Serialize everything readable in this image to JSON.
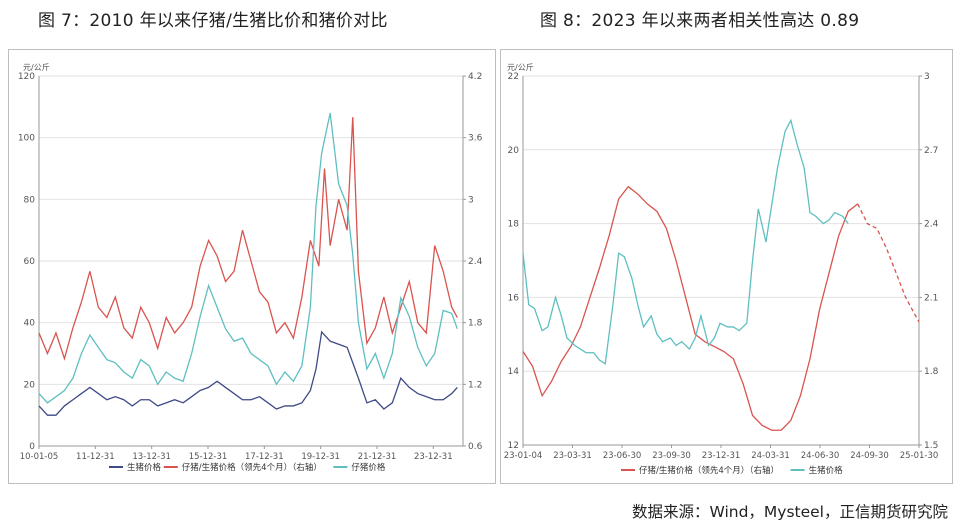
{
  "titles": {
    "left": "图 7：2010 年以来仔猪/生猪比价和猪价对比",
    "right": "图 8：2023 年以来两者相关性高达 0.89"
  },
  "source": "数据来源：Wind，Mysteel，正信期货研究院",
  "chart_data": [
    {
      "type": "line",
      "unit_label": "元/公斤",
      "x_ticks": [
        "10-01-05",
        "11-12-31",
        "13-12-31",
        "15-12-31",
        "17-12-31",
        "19-12-31",
        "21-12-31",
        "23-12-31"
      ],
      "x_range": [
        "2010-01-05",
        "2024-12-31"
      ],
      "y_left": {
        "min": 0,
        "max": 120,
        "ticks": [
          0,
          20,
          40,
          60,
          80,
          100,
          120
        ]
      },
      "y_right": {
        "min": 0.6,
        "max": 4.2,
        "ticks": [
          "0.6",
          "1.2",
          "1.8",
          "2.4",
          "3",
          "3.6",
          "4.2"
        ]
      },
      "series": [
        {
          "name": "生猪价格",
          "axis": "left",
          "color": "#3f4a86",
          "x": [
            2010.0,
            2010.3,
            2010.6,
            2010.9,
            2011.2,
            2011.5,
            2011.8,
            2012.1,
            2012.4,
            2012.7,
            2013.0,
            2013.3,
            2013.6,
            2013.9,
            2014.2,
            2014.5,
            2014.8,
            2015.1,
            2015.4,
            2015.7,
            2016.0,
            2016.3,
            2016.6,
            2016.9,
            2017.2,
            2017.5,
            2017.8,
            2018.1,
            2018.4,
            2018.7,
            2019.0,
            2019.3,
            2019.6,
            2019.8,
            2020.0,
            2020.3,
            2020.6,
            2020.9,
            2021.1,
            2021.3,
            2021.6,
            2021.9,
            2022.2,
            2022.5,
            2022.8,
            2023.1,
            2023.4,
            2023.7,
            2024.0,
            2024.3,
            2024.6,
            2024.8
          ],
          "y": [
            13,
            10,
            10,
            13,
            15,
            17,
            19,
            17,
            15,
            16,
            15,
            13,
            15,
            15,
            13,
            14,
            15,
            14,
            16,
            18,
            19,
            21,
            19,
            17,
            15,
            15,
            16,
            14,
            12,
            13,
            13,
            14,
            18,
            25,
            37,
            34,
            33,
            32,
            27,
            22,
            14,
            15,
            12,
            14,
            22,
            19,
            17,
            16,
            15,
            15,
            17,
            19
          ]
        },
        {
          "name": "仔猪/生猪价格（领先4个月）（右轴）",
          "axis": "right",
          "color": "#d9544f",
          "x": [
            2010.0,
            2010.3,
            2010.6,
            2010.9,
            2011.2,
            2011.5,
            2011.8,
            2012.1,
            2012.4,
            2012.7,
            2013.0,
            2013.3,
            2013.6,
            2013.9,
            2014.2,
            2014.5,
            2014.8,
            2015.1,
            2015.4,
            2015.7,
            2016.0,
            2016.3,
            2016.6,
            2016.9,
            2017.2,
            2017.5,
            2017.8,
            2018.1,
            2018.4,
            2018.7,
            2019.0,
            2019.3,
            2019.6,
            2019.9,
            2020.1,
            2020.3,
            2020.6,
            2020.9,
            2021.1,
            2021.3,
            2021.6,
            2021.9,
            2022.2,
            2022.5,
            2022.8,
            2023.1,
            2023.4,
            2023.7,
            2024.0,
            2024.3,
            2024.6,
            2024.8
          ],
          "y": [
            1.7,
            1.5,
            1.7,
            1.45,
            1.75,
            2.0,
            2.3,
            1.95,
            1.85,
            2.05,
            1.75,
            1.65,
            1.95,
            1.8,
            1.55,
            1.85,
            1.7,
            1.8,
            1.95,
            2.35,
            2.6,
            2.45,
            2.2,
            2.3,
            2.7,
            2.4,
            2.1,
            2.0,
            1.7,
            1.8,
            1.65,
            2.05,
            2.6,
            2.35,
            3.3,
            2.55,
            3.0,
            2.7,
            3.8,
            2.3,
            1.6,
            1.75,
            2.05,
            1.7,
            1.95,
            2.2,
            1.8,
            1.7,
            2.55,
            2.3,
            1.95,
            1.85
          ]
        },
        {
          "name": "仔猪价格",
          "axis": "left",
          "color": "#5fbfc0",
          "x": [
            2010.0,
            2010.3,
            2010.6,
            2010.9,
            2011.2,
            2011.5,
            2011.8,
            2012.1,
            2012.4,
            2012.7,
            2013.0,
            2013.3,
            2013.6,
            2013.9,
            2014.2,
            2014.5,
            2014.8,
            2015.1,
            2015.4,
            2015.7,
            2016.0,
            2016.3,
            2016.6,
            2016.9,
            2017.2,
            2017.5,
            2017.8,
            2018.1,
            2018.4,
            2018.7,
            2019.0,
            2019.3,
            2019.6,
            2019.8,
            2020.0,
            2020.3,
            2020.6,
            2020.9,
            2021.1,
            2021.3,
            2021.6,
            2021.9,
            2022.2,
            2022.5,
            2022.8,
            2023.1,
            2023.4,
            2023.7,
            2024.0,
            2024.3,
            2024.6,
            2024.8
          ],
          "y": [
            17,
            14,
            16,
            18,
            22,
            30,
            36,
            32,
            28,
            27,
            24,
            22,
            28,
            26,
            20,
            24,
            22,
            21,
            30,
            42,
            52,
            45,
            38,
            34,
            35,
            30,
            28,
            26,
            20,
            24,
            21,
            26,
            45,
            78,
            95,
            108,
            85,
            78,
            62,
            40,
            25,
            30,
            22,
            30,
            48,
            42,
            32,
            26,
            30,
            44,
            43,
            38
          ]
        }
      ]
    },
    {
      "type": "line",
      "unit_label": "元/公斤",
      "x_ticks": [
        "23-01-04",
        "23-03-31",
        "23-06-30",
        "23-09-30",
        "23-12-31",
        "24-03-31",
        "24-06-30",
        "24-09-30",
        "25-01-30"
      ],
      "x_range": [
        "2023-01-04",
        "2025-01-30"
      ],
      "y_left": {
        "min": 12,
        "max": 22,
        "ticks": [
          12,
          14,
          16,
          18,
          20,
          22
        ]
      },
      "y_right": {
        "min": 1.5,
        "max": 3.0,
        "ticks": [
          "1.5",
          "1.8",
          "2.1",
          "2.4",
          "2.7",
          "3"
        ]
      },
      "series": [
        {
          "name": "仔猪/生猪价格（领先4个月）（右轴）",
          "axis": "right",
          "color": "#d9544f",
          "x": [
            0,
            0.05,
            0.1,
            0.15,
            0.2,
            0.25,
            0.3,
            0.35,
            0.4,
            0.45,
            0.5,
            0.55,
            0.6,
            0.65,
            0.7,
            0.75,
            0.8,
            0.85,
            0.9,
            0.95,
            1.0,
            1.05,
            1.1,
            1.15,
            1.2,
            1.25,
            1.3,
            1.35,
            1.4,
            1.45,
            1.5,
            1.55,
            1.6,
            1.65,
            1.7,
            1.75,
            1.8,
            1.85,
            1.9,
            1.95,
            2.0,
            2.07
          ],
          "y": [
            1.88,
            1.82,
            1.7,
            1.76,
            1.84,
            1.9,
            1.98,
            2.1,
            2.22,
            2.35,
            2.5,
            2.55,
            2.52,
            2.48,
            2.45,
            2.38,
            2.25,
            2.1,
            1.95,
            1.92,
            1.9,
            1.88,
            1.85,
            1.75,
            1.62,
            1.58,
            1.56,
            1.56,
            1.6,
            1.7,
            1.85,
            2.05,
            2.2,
            2.35,
            2.45,
            2.48,
            2.4,
            2.38,
            2.3,
            2.2,
            2.1,
            2.0
          ],
          "dashed_from_index": 35
        },
        {
          "name": "生猪价格",
          "axis": "left",
          "color": "#5fbfc0",
          "x": [
            0,
            0.03,
            0.06,
            0.1,
            0.13,
            0.17,
            0.2,
            0.23,
            0.27,
            0.3,
            0.33,
            0.37,
            0.4,
            0.43,
            0.47,
            0.5,
            0.53,
            0.57,
            0.6,
            0.63,
            0.67,
            0.7,
            0.73,
            0.77,
            0.8,
            0.83,
            0.87,
            0.9,
            0.93,
            0.97,
            1.0,
            1.03,
            1.07,
            1.1,
            1.13,
            1.17,
            1.2,
            1.23,
            1.27,
            1.3,
            1.33,
            1.37,
            1.4,
            1.43,
            1.47,
            1.5,
            1.53,
            1.57,
            1.6,
            1.63,
            1.67,
            1.7
          ],
          "y": [
            17.2,
            15.8,
            15.7,
            15.1,
            15.2,
            16.0,
            15.5,
            14.9,
            14.7,
            14.6,
            14.5,
            14.5,
            14.3,
            14.2,
            15.8,
            17.2,
            17.1,
            16.5,
            15.8,
            15.2,
            15.5,
            15.0,
            14.8,
            14.9,
            14.7,
            14.8,
            14.6,
            14.9,
            15.5,
            14.7,
            14.9,
            15.3,
            15.2,
            15.2,
            15.1,
            15.3,
            17.0,
            18.4,
            17.5,
            18.5,
            19.5,
            20.5,
            20.8,
            20.2,
            19.5,
            18.3,
            18.2,
            18.0,
            18.1,
            18.3,
            18.2,
            18.0
          ]
        }
      ]
    }
  ]
}
